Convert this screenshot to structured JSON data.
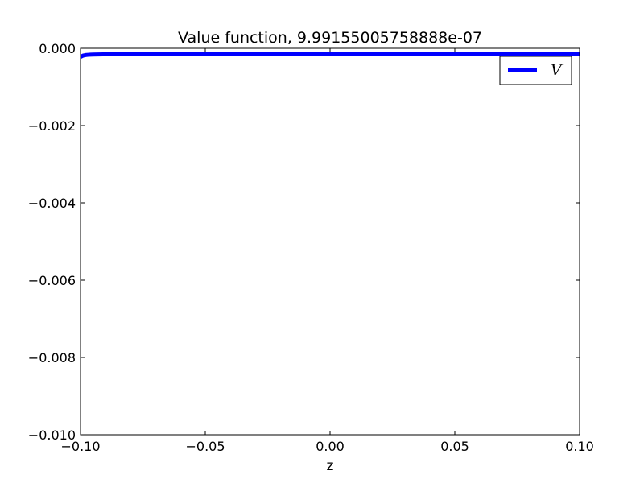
{
  "chart_data": {
    "type": "line",
    "title": "Value function, 9.99155005758888e-07",
    "xlabel": "z",
    "ylabel": "",
    "xlim": [
      -0.1,
      0.1
    ],
    "ylim": [
      -0.01,
      0.0
    ],
    "x_ticks": [
      -0.1,
      -0.05,
      0.0,
      0.05,
      0.1
    ],
    "x_tick_labels": [
      "−0.10",
      "−0.05",
      "0.00",
      "0.05",
      "0.10"
    ],
    "y_ticks": [
      0.0,
      -0.002,
      -0.004,
      -0.006,
      -0.008,
      -0.01
    ],
    "y_tick_labels": [
      "0.000",
      "−0.002",
      "−0.004",
      "−0.006",
      "−0.008",
      "−0.010"
    ],
    "grid": false,
    "legend_position": "top-right",
    "series": [
      {
        "name": "V",
        "color": "#0000ff",
        "x": [
          -0.1,
          -0.099,
          -0.098,
          -0.097,
          -0.096,
          -0.095,
          -0.093,
          -0.09,
          -0.085,
          -0.08,
          -0.07,
          -0.05,
          -0.02,
          0.0,
          0.02,
          0.05,
          0.08,
          0.1
        ],
        "y": [
          -0.00022,
          -0.00019,
          -0.000175,
          -0.000168,
          -0.000164,
          -0.000161,
          -0.000158,
          -0.000156,
          -0.000154,
          -0.000153,
          -0.000151,
          -0.000149,
          -0.000147,
          -0.000146,
          -0.000145,
          -0.000144,
          -0.000143,
          -0.000142
        ]
      }
    ]
  }
}
